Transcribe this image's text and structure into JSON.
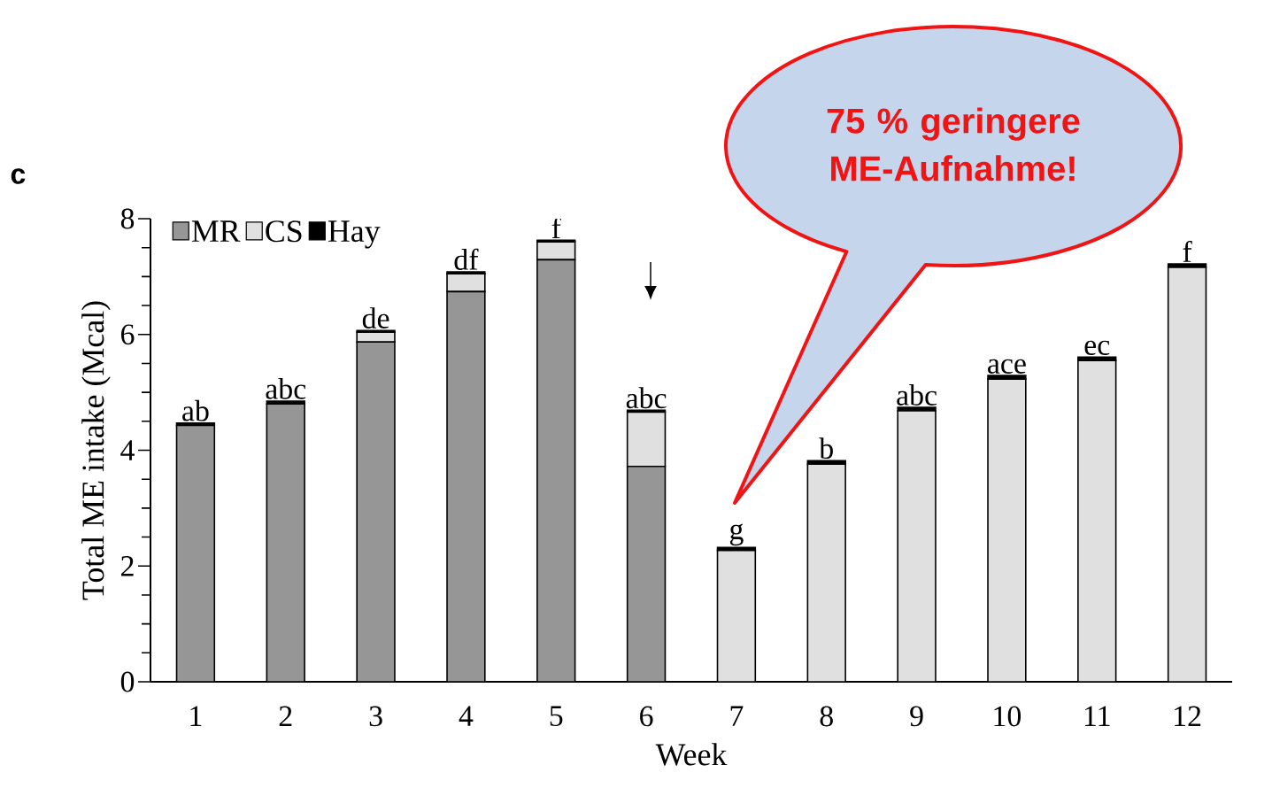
{
  "chart_data": {
    "type": "bar",
    "stacked": true,
    "xlabel": "Week",
    "ylabel": "Total ME intake (Mcal)",
    "categories": [
      "1",
      "2",
      "3",
      "4",
      "5",
      "6",
      "7",
      "8",
      "9",
      "10",
      "11",
      "12"
    ],
    "series": [
      {
        "name": "MR",
        "color": "#969696",
        "values": [
          4.43,
          4.8,
          5.87,
          6.74,
          7.29,
          3.72,
          0,
          0,
          0,
          0,
          0,
          0
        ]
      },
      {
        "name": "CS",
        "color": "#e0e0e0",
        "values": [
          0,
          0,
          0.17,
          0.31,
          0.31,
          0.94,
          2.27,
          3.76,
          4.68,
          5.23,
          5.55,
          7.16
        ]
      },
      {
        "name": "Hay",
        "color": "#000000",
        "values": [
          0.04,
          0.05,
          0.03,
          0.03,
          0.03,
          0.03,
          0.05,
          0.06,
          0.06,
          0.06,
          0.06,
          0.06
        ]
      }
    ],
    "ylim": [
      0,
      8
    ],
    "yticks": [
      0,
      {
        "value": 0.5,
        "label": null
      },
      {
        "value": 1,
        "label": null
      },
      {
        "value": 1.5,
        "label": null
      },
      2,
      {
        "value": 2.5,
        "label": null
      },
      {
        "value": 3,
        "label": null
      },
      {
        "value": 3.5,
        "label": null
      },
      4,
      {
        "value": 4.5,
        "label": null
      },
      {
        "value": 5,
        "label": null
      },
      {
        "value": 5.5,
        "label": null
      },
      6,
      {
        "value": 6.5,
        "label": null
      },
      {
        "value": 7,
        "label": null
      },
      {
        "value": 7.5,
        "label": null
      },
      8
    ],
    "legend": "top left",
    "grid": false,
    "annotations": [
      "c",
      {
        "text": "ab",
        "x": "1",
        "y": 4.47
      },
      {
        "text": "abc",
        "x": "2",
        "y": 4.85
      },
      {
        "text": "de",
        "x": "3",
        "y": 6.07
      },
      {
        "text": "df",
        "x": "4",
        "y": 7.08
      },
      {
        "text": "f",
        "x": "5",
        "y": 7.63
      },
      {
        "text": "abc",
        "x": "6",
        "y": 4.69
      },
      {
        "text": "g",
        "x": "7",
        "y": 2.32
      },
      {
        "text": "b",
        "x": "8",
        "y": 3.82
      },
      {
        "text": "abc",
        "x": "9",
        "y": 4.74
      },
      {
        "text": "ace",
        "x": "10",
        "y": 5.29
      },
      {
        "text": "ec",
        "x": "11",
        "y": 5.61
      },
      {
        "text": "f",
        "x": "12",
        "y": 7.22
      },
      "75 % geringere ME-Aufnahme!"
    ]
  }
}
